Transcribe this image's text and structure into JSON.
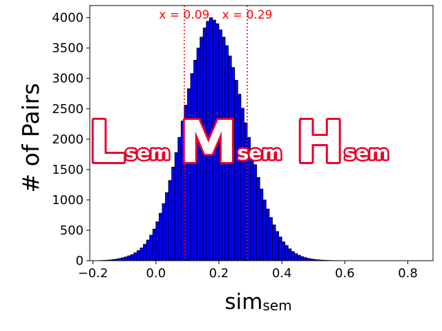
{
  "chart_data": {
    "type": "bar",
    "ylabel": "# of Pairs",
    "xlabel_main": "sim",
    "xlabel_sub": "sem",
    "xlim": [
      -0.21,
      0.88
    ],
    "ylim": [
      0,
      4200
    ],
    "xticks": [
      -0.2,
      0.0,
      0.2,
      0.4,
      0.6,
      0.8
    ],
    "xtick_labels": [
      "−0.2",
      "0.0",
      "0.2",
      "0.4",
      "0.6",
      "0.8"
    ],
    "yticks": [
      0,
      500,
      1000,
      1500,
      2000,
      2500,
      3000,
      3500,
      4000
    ],
    "ytick_labels": [
      "0",
      "500",
      "1000",
      "1500",
      "2000",
      "2500",
      "3000",
      "3500",
      "4000"
    ],
    "bin_start": -0.18,
    "bin_width": 0.01,
    "counts": [
      3,
      5,
      8,
      12,
      18,
      25,
      35,
      48,
      62,
      80,
      100,
      130,
      165,
      210,
      270,
      340,
      420,
      520,
      640,
      780,
      940,
      1120,
      1320,
      1540,
      1780,
      2030,
      2300,
      2560,
      2830,
      3080,
      3300,
      3500,
      3680,
      3830,
      3940,
      4000,
      3960,
      3900,
      3800,
      3680,
      3540,
      3370,
      3180,
      2970,
      2740,
      2510,
      2270,
      2030,
      1800,
      1580,
      1370,
      1180,
      1000,
      850,
      710,
      590,
      480,
      390,
      310,
      250,
      195,
      150,
      115,
      88,
      66,
      50,
      37,
      27,
      20,
      14,
      10,
      7,
      5,
      3,
      2,
      2,
      1,
      1,
      1,
      0,
      0,
      0,
      0,
      0,
      0,
      0,
      0,
      0,
      0,
      0,
      0,
      0,
      0,
      0,
      0,
      0,
      0,
      0,
      0,
      0
    ],
    "bar_color": "#0000ff",
    "edge_color": "#000000",
    "vlines": [
      {
        "x": 0.09,
        "label": "x = 0.09",
        "color": "#ff0000"
      },
      {
        "x": 0.29,
        "label": "x = 0.29",
        "color": "#ff0000"
      }
    ],
    "regions": [
      {
        "letter": "L",
        "sub": "sem"
      },
      {
        "letter": "M",
        "sub": "sem"
      },
      {
        "letter": "H",
        "sub": "sem"
      }
    ],
    "grid": false
  }
}
